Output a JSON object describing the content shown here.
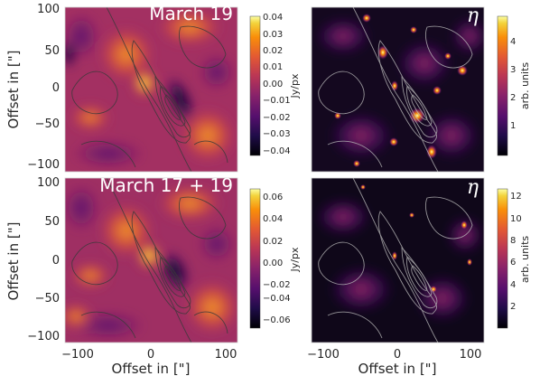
{
  "chart_data": [
    {
      "type": "heatmap",
      "panel": "top-left",
      "title": "March 19",
      "ylabel": "Offset in [\"]",
      "xlabel": "",
      "xlim": [
        -115,
        115
      ],
      "ylim": [
        -115,
        115
      ],
      "yticks": [
        "100",
        "50",
        "0",
        "−50",
        "−100"
      ],
      "xticks": [],
      "colormap": "inferno",
      "contours": true,
      "contour_color": "#3a3a3a",
      "colorbar": {
        "label": "Jy/px",
        "ticks": [
          "0.04",
          "0.03",
          "0.02",
          "0.01",
          "0.00",
          "−0.01",
          "−0.02",
          "−0.03",
          "−0.04"
        ],
        "range": [
          -0.045,
          0.042
        ]
      }
    },
    {
      "type": "heatmap",
      "panel": "top-right",
      "title": "η",
      "xlim": [
        -115,
        115
      ],
      "ylim": [
        -115,
        115
      ],
      "xticks": [],
      "yticks": [],
      "colormap": "inferno",
      "contours": true,
      "contour_color": "#b8b8b8",
      "colorbar": {
        "label": "arb. units",
        "ticks": [
          "4",
          "3",
          "2",
          "1"
        ],
        "range": [
          0,
          5
        ]
      }
    },
    {
      "type": "heatmap",
      "panel": "bottom-left",
      "title": "March 17 + 19",
      "ylabel": "Offset in [\"]",
      "xlabel": "Offset in [\"]",
      "xlim": [
        -115,
        115
      ],
      "ylim": [
        -115,
        115
      ],
      "yticks": [
        "100",
        "50",
        "0",
        "−50",
        "−100"
      ],
      "xticks": [
        "−100",
        "0",
        "100"
      ],
      "colormap": "inferno",
      "contours": true,
      "contour_color": "#3a3a3a",
      "colorbar": {
        "label": "Jy/px",
        "ticks": [
          "0.06",
          "0.04",
          "0.02",
          "0.00",
          "−0.02",
          "−0.04",
          "−0.06"
        ],
        "range": [
          -0.07,
          0.075
        ]
      }
    },
    {
      "type": "heatmap",
      "panel": "bottom-right",
      "title": "η",
      "xlabel": "Offset in [\"]",
      "xlim": [
        -115,
        115
      ],
      "ylim": [
        -115,
        115
      ],
      "xticks": [
        "−100",
        "0",
        "100"
      ],
      "yticks": [],
      "colormap": "inferno",
      "contours": true,
      "contour_color": "#b8b8b8",
      "colorbar": {
        "label": "arb. units",
        "ticks": [
          "12",
          "10",
          "8",
          "6",
          "4",
          "2"
        ],
        "range": [
          0,
          13
        ]
      }
    }
  ]
}
